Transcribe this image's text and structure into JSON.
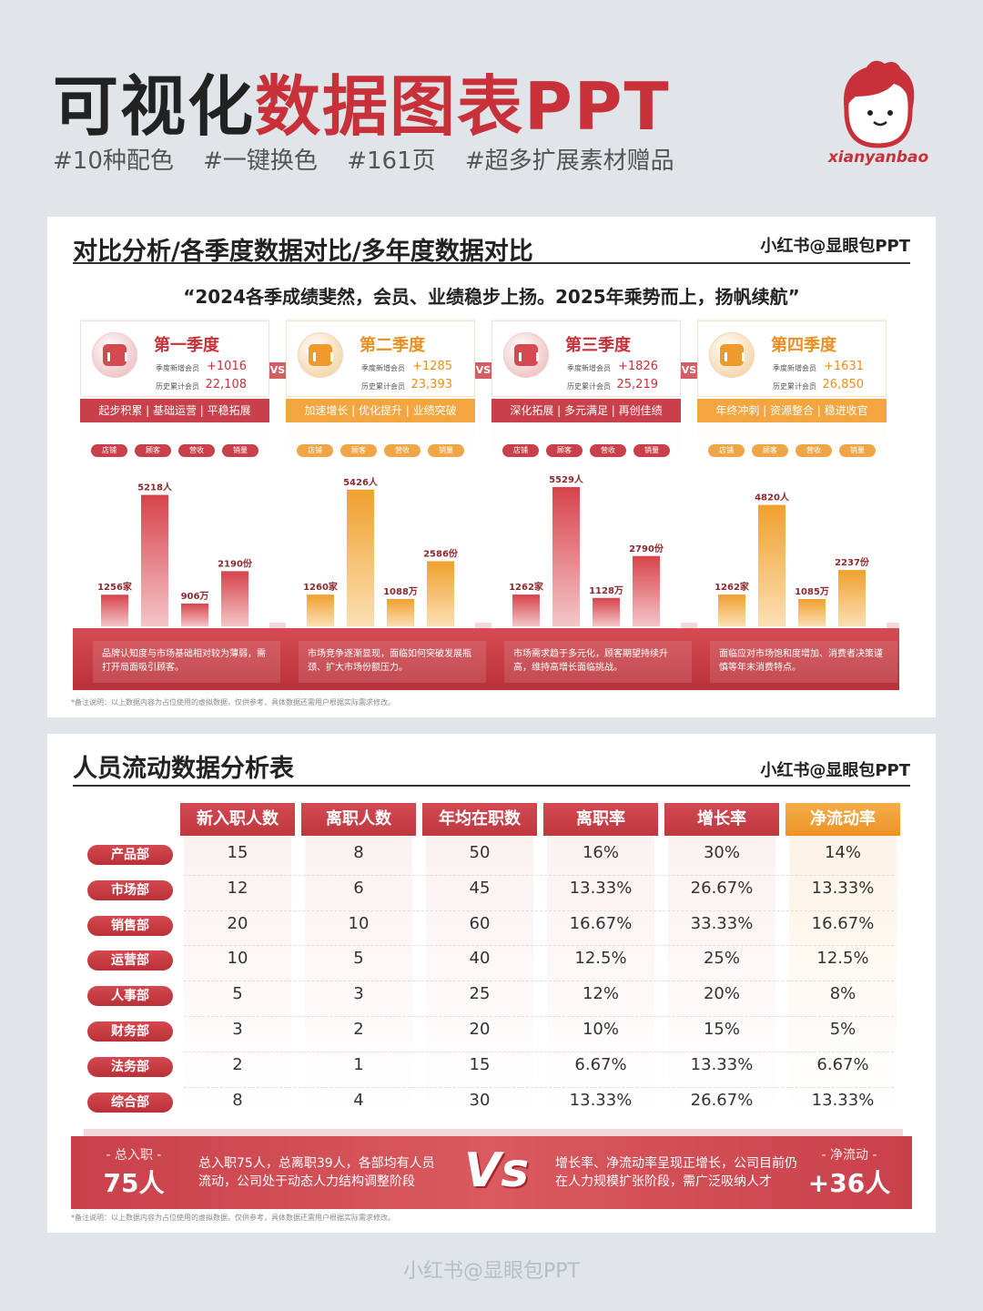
{
  "header": {
    "title_dark": "可视化",
    "title_red": "数据图表PPT",
    "tags": [
      "#10种配色",
      "#一键换色",
      "#161页",
      "#超多扩展素材赠品"
    ],
    "logo_text": "xianyanbao"
  },
  "card1": {
    "title": "对比分析/各季度数据对比/多年度数据对比",
    "credit": "小红书@显眼包PPT",
    "quote": "“2024各季成绩斐然，会员、业绩稳步上扬。2025年乘势而上，扬帆续航”",
    "vs": "VS",
    "stat_labels": [
      "季度新增会员",
      "历史累计会员"
    ],
    "footnote": "*备注说明：以上数据内容为占位使用的虚拟数据，仅供参考，具体数据还需用户根据实际需求修改。",
    "colors": {
      "red": "#c8303a",
      "orange": "#f0a547"
    }
  },
  "chart_data": {
    "type": "bar",
    "categories": [
      "店铺",
      "顾客",
      "营收",
      "销量"
    ],
    "groups": [
      {
        "name": "第一季度",
        "new_members": "+1016",
        "total_members": "22,108",
        "band": "起步积累 | 基础运营 | 平稳拓展",
        "values": [
          1256,
          5218,
          906,
          2190
        ],
        "labels": [
          "1256家",
          "5218人",
          "906万",
          "2190份"
        ],
        "note": "品牌认知度与市场基础相对较为薄弱，需打开局面吸引顾客。"
      },
      {
        "name": "第二季度",
        "new_members": "+1285",
        "total_members": "23,393",
        "band": "加速增长 | 优化提升 | 业绩突破",
        "values": [
          1260,
          5426,
          1088,
          2586
        ],
        "labels": [
          "1260家",
          "5426人",
          "1088万",
          "2586份"
        ],
        "note": "市场竞争逐渐显现，面临如何突破发展瓶颈、扩大市场份额压力。"
      },
      {
        "name": "第三季度",
        "new_members": "+1826",
        "total_members": "25,219",
        "band": "深化拓展 | 多元满足 | 再创佳绩",
        "values": [
          1262,
          5529,
          1128,
          2790
        ],
        "labels": [
          "1262家",
          "5529人",
          "1128万",
          "2790份"
        ],
        "note": "市场需求趋于多元化，顾客期望持续升高，维持高增长面临挑战。"
      },
      {
        "name": "第四季度",
        "new_members": "+1631",
        "total_members": "26,850",
        "band": "年终冲刺 | 资源整合 | 稳进收官",
        "values": [
          1262,
          4820,
          1085,
          2237
        ],
        "labels": [
          "1262家",
          "4820人",
          "1085万",
          "2237份"
        ],
        "note": "面临应对市场饱和度增加、消费者决策谨慎等年末消费特点。"
      }
    ]
  },
  "card2": {
    "title": "人员流动数据分析表",
    "credit": "小红书@显眼包PPT",
    "headers": [
      "新入职人数",
      "离职人数",
      "年均在职数",
      "离职率",
      "增长率",
      "净流动率"
    ],
    "rows": [
      {
        "dept": "产品部",
        "values": [
          "15",
          "8",
          "50",
          "16%",
          "30%",
          "14%"
        ]
      },
      {
        "dept": "市场部",
        "values": [
          "12",
          "6",
          "45",
          "13.33%",
          "26.67%",
          "13.33%"
        ]
      },
      {
        "dept": "销售部",
        "values": [
          "20",
          "10",
          "60",
          "16.67%",
          "33.33%",
          "16.67%"
        ]
      },
      {
        "dept": "运营部",
        "values": [
          "10",
          "5",
          "40",
          "12.5%",
          "25%",
          "12.5%"
        ]
      },
      {
        "dept": "人事部",
        "values": [
          "5",
          "3",
          "25",
          "12%",
          "20%",
          "8%"
        ]
      },
      {
        "dept": "财务部",
        "values": [
          "3",
          "2",
          "20",
          "10%",
          "15%",
          "5%"
        ]
      },
      {
        "dept": "法务部",
        "values": [
          "2",
          "1",
          "15",
          "6.67%",
          "13.33%",
          "6.67%"
        ]
      },
      {
        "dept": "综合部",
        "values": [
          "8",
          "4",
          "30",
          "13.33%",
          "26.67%",
          "13.33%"
        ]
      }
    ],
    "summary": {
      "left_label": "- 总入职 -",
      "left_value": "75人",
      "left_text": "总入职75人，总离职39人，各部均有人员流动，公司处于动态人力结构调整阶段",
      "vs": "Vs",
      "right_text": "增长率、净流动率呈现正增长，公司目前仍在人力规模扩张阶段，需广泛吸纳人才",
      "right_label": "- 净流动 -",
      "right_value": "+36人"
    },
    "footnote": "*备注说明：以上数据内容为占位使用的虚拟数据，仅供参考，具体数据还需用户根据实际需求修改。"
  },
  "footer": {
    "credit": "小红书@显眼包PPT"
  }
}
